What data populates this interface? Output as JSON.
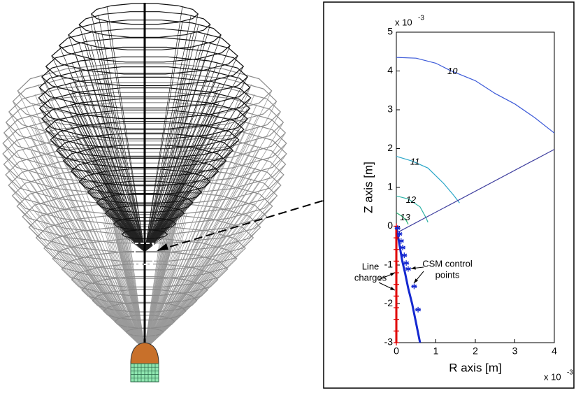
{
  "chart_data": {
    "type": "contour",
    "xlabel": "R axis [m]",
    "ylabel": "Z axis [m]",
    "x_multiplier": {
      "base": "x 10",
      "exponent": "-3"
    },
    "y_multiplier": {
      "base": "x 10",
      "exponent": "-3"
    },
    "xlim": [
      0,
      4
    ],
    "ylim": [
      -3,
      5
    ],
    "xticks": [
      0,
      1,
      2,
      3,
      4
    ],
    "yticks": [
      -3,
      -2,
      -1,
      0,
      1,
      2,
      3,
      4,
      5
    ],
    "contours": [
      {
        "label": "10",
        "color": "#3c5ad8",
        "x": [
          0,
          0.5,
          1,
          1.35,
          2,
          2.5,
          3,
          3.5,
          4
        ],
        "y": [
          4.35,
          4.33,
          4.2,
          4.02,
          3.75,
          3.42,
          3.15,
          2.8,
          2.4
        ]
      },
      {
        "label": "11",
        "color": "#2aa6c8",
        "x": [
          0,
          0.4,
          0.8,
          1.2,
          1.45,
          1.6
        ],
        "y": [
          1.8,
          1.68,
          1.5,
          1.1,
          0.8,
          0.6
        ]
      },
      {
        "label": "12",
        "color": "#2fb3a6",
        "x": [
          0,
          0.3,
          0.6,
          0.75,
          0.8
        ],
        "y": [
          0.78,
          0.7,
          0.5,
          0.22,
          0.1
        ]
      },
      {
        "label": "13",
        "color": "#22b070",
        "x": [
          0,
          0.15,
          0.25,
          0.3
        ],
        "y": [
          0.35,
          0.25,
          0.15,
          0.05
        ]
      }
    ],
    "lines": [
      {
        "color": "#3e3e9e",
        "width": 1.2,
        "line": true,
        "x": [
          0.05,
          4
        ],
        "y": [
          -0.15,
          1.98
        ]
      },
      {
        "color": "#1428d0",
        "width": 3,
        "line": true,
        "x": [
          0,
          0.05,
          0.1,
          0.15,
          0.22,
          0.3,
          0.4,
          0.5,
          0.6
        ],
        "y": [
          0,
          -0.3,
          -0.6,
          -0.9,
          -1.2,
          -1.6,
          -2,
          -2.5,
          -3
        ]
      },
      {
        "color": "#e00000",
        "width": 3,
        "line": true,
        "marker": "+",
        "x": [
          0,
          0,
          0,
          0,
          0,
          0,
          0,
          0,
          0,
          0,
          0
        ],
        "y": [
          0,
          -0.3,
          -0.6,
          -0.9,
          -1.2,
          -1.5,
          -1.8,
          -2.1,
          -2.4,
          -2.7,
          -3
        ]
      },
      {
        "color": "#1428d0",
        "width": 1.3,
        "line": false,
        "marker": "*",
        "x": [
          0.03,
          0.08,
          0.12,
          0.16,
          0.2,
          0.25,
          0.3,
          0.45,
          0.55
        ],
        "y": [
          -0.05,
          -0.2,
          -0.38,
          -0.55,
          -0.75,
          -0.95,
          -1.1,
          -1.55,
          -2.15
        ]
      }
    ],
    "annotations": [
      [
        "Line",
        "charges"
      ],
      [
        "CSM control",
        "points"
      ]
    ]
  }
}
